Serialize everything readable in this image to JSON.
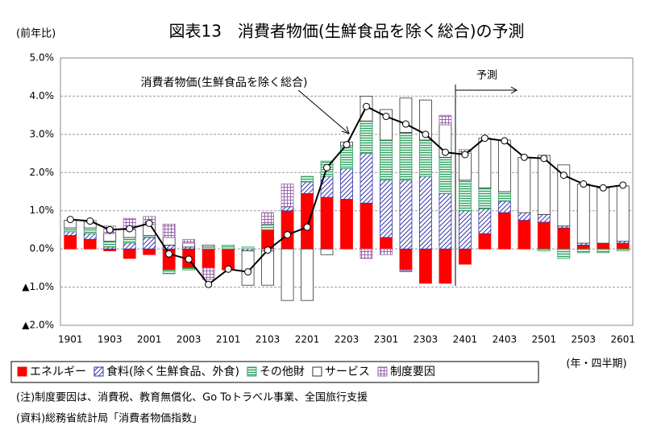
{
  "chart_data": {
    "type": "stacked_bar_line",
    "title": "図表13　消費者物価(生鮮食品を除く総合)の予測",
    "y_axis_label": "(前年比)",
    "x_axis_label": "(年・四半期)",
    "annotations": [
      "予測"
    ],
    "notes": [
      "(注)制度要因は、消費税、教育無償化、Go Toトラベル事業、全国旅行支援",
      "(資料)総務省統計局「消費者物価指数」"
    ],
    "categories": [
      "1901",
      null,
      "1903",
      null,
      "2001",
      null,
      "2003",
      null,
      "2101",
      null,
      "2103",
      null,
      "2201",
      null,
      "2203",
      null,
      "2301",
      null,
      "2303",
      null,
      "2401",
      null,
      "2403",
      null,
      "2501",
      null,
      "2503",
      null,
      "2601"
    ],
    "series": [
      {
        "name": "エネルギー",
        "color": "#ff0000",
        "pattern": "solid",
        "values": [
          0.35,
          0.25,
          -0.05,
          -0.25,
          -0.15,
          -0.55,
          -0.5,
          -0.5,
          -0.55,
          0,
          0.5,
          1.0,
          1.45,
          1.35,
          1.3,
          1.2,
          0.3,
          -0.55,
          -0.9,
          -0.9,
          -0.4,
          0.4,
          0.95,
          0.75,
          0.7,
          0.55,
          0.1,
          0.15,
          0.15
        ]
      },
      {
        "name": "食料(除く生鮮食品、外食)",
        "color": "#3333aa",
        "pattern": "hatch",
        "values": [
          0.1,
          0.15,
          0.05,
          0.15,
          0.3,
          0.1,
          0.05,
          0,
          0,
          -0.05,
          -0.05,
          0.1,
          0.3,
          0.55,
          0.8,
          1.3,
          1.5,
          1.8,
          1.9,
          1.45,
          1.0,
          0.65,
          0.3,
          0.2,
          0.2,
          0.05,
          0.05,
          0,
          0.05
        ]
      },
      {
        "name": "その他財",
        "color": "#2e9e5e",
        "pattern": "lines",
        "values": [
          0.1,
          0.15,
          0.15,
          0.15,
          0.05,
          -0.1,
          -0.05,
          0.05,
          0.1,
          0.05,
          0.15,
          0,
          0.15,
          0.4,
          0.6,
          0.85,
          1.05,
          1.25,
          0.95,
          0.95,
          0.8,
          0.55,
          0.25,
          0,
          -0.05,
          -0.25,
          -0.1,
          -0.1,
          -0.05
        ]
      },
      {
        "name": "サービス",
        "color": "#ffffff",
        "pattern": "solid",
        "values": [
          0.2,
          0.15,
          0.2,
          0.2,
          0.3,
          0.2,
          0.1,
          0.05,
          0,
          -0.9,
          -0.9,
          -1.35,
          -1.35,
          -0.15,
          0.1,
          0.65,
          0.8,
          0.9,
          1.05,
          0.85,
          0.7,
          1.3,
          1.35,
          1.45,
          1.55,
          1.6,
          1.55,
          1.45,
          1.45
        ]
      },
      {
        "name": "制度要因",
        "color": "#9966aa",
        "pattern": "grid",
        "values": [
          0,
          0.05,
          0.2,
          0.3,
          0.2,
          0.35,
          0.1,
          -0.3,
          0,
          0,
          0.3,
          0.6,
          0,
          0,
          0,
          -0.25,
          -0.15,
          -0.05,
          0,
          0.25,
          0.1,
          0,
          0,
          0,
          0,
          0,
          0,
          0,
          0
        ]
      }
    ],
    "line": {
      "name": "消費者物価(生鮮食品を除く総合)",
      "color": "#000000",
      "values": [
        0.77,
        0.73,
        0.5,
        0.53,
        0.67,
        -0.13,
        -0.27,
        -0.93,
        -0.53,
        -0.6,
        -0.03,
        0.37,
        0.57,
        2.13,
        2.73,
        3.73,
        3.47,
        3.27,
        3.0,
        2.53,
        2.47,
        2.9,
        2.83,
        2.4,
        2.37,
        1.93,
        1.7,
        1.6,
        1.67
      ]
    },
    "ylim": [
      -2,
      5
    ],
    "yticks": [
      {
        "value": -2,
        "label": "▲2.0%"
      },
      {
        "value": -1,
        "label": "▲1.0%"
      },
      {
        "value": 0,
        "label": "0.0%"
      },
      {
        "value": 1,
        "label": "1.0%"
      },
      {
        "value": 2,
        "label": "2.0%"
      },
      {
        "value": 3,
        "label": "3.0%"
      },
      {
        "value": 4,
        "label": "4.0%"
      },
      {
        "value": 5,
        "label": "5.0%"
      }
    ],
    "grid": true
  }
}
